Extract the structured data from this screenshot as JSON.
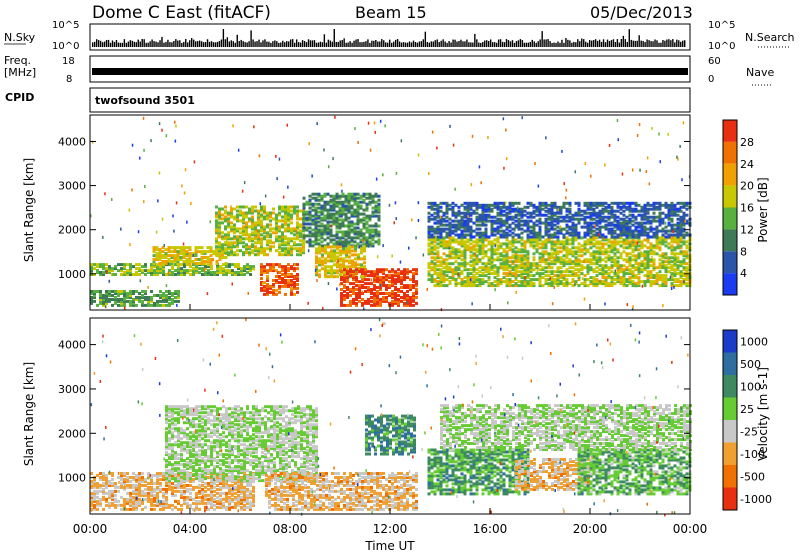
{
  "header": {
    "station": "Dome C East (fitACF)",
    "beam": "Beam 15",
    "date": "05/Dec/2013"
  },
  "top_panels": {
    "nsky_label": "N.Sky",
    "nsky_ticks": [
      "10^5",
      "10^0"
    ],
    "nsearch_label": "N.Search",
    "nsearch_ticks": [
      "10^5",
      "10^0"
    ],
    "freq_label": "Freq.",
    "freq_unit": "[MHz]",
    "freq_ticks": [
      "18",
      "8"
    ],
    "nave_label": "Nave",
    "nave_ticks": [
      "60",
      "0"
    ],
    "cpid_label": "CPID",
    "cpid_value": "twofsound 3501"
  },
  "x_axis": {
    "label": "Time UT",
    "ticks": [
      "00:00",
      "04:00",
      "08:00",
      "12:00",
      "16:00",
      "20:00",
      "00:00"
    ]
  },
  "power_panel": {
    "ylabel": "Slant Range [km]",
    "yticks": [
      "1000",
      "2000",
      "3000",
      "4000"
    ],
    "colorbar_label": "Power [dB]",
    "colorbar_ticks": [
      "4",
      "8",
      "12",
      "16",
      "20",
      "24",
      "28"
    ],
    "colorbar_colors": [
      "#1a3cf0",
      "#2a55a8",
      "#3d7a55",
      "#58b040",
      "#c8c800",
      "#f0a000",
      "#f07000",
      "#e83010"
    ]
  },
  "velocity_panel": {
    "ylabel": "Slant Range [km]",
    "yticks": [
      "1000",
      "2000",
      "3000",
      "4000"
    ],
    "colorbar_label": "Velocity [m s-1]",
    "colorbar_ticks": [
      "1000",
      "500",
      "100",
      "25",
      "-25",
      "-100",
      "-500",
      "-1000"
    ],
    "colorbar_colors": [
      "#1a3cc8",
      "#2e6ea0",
      "#3d8a60",
      "#66cc33",
      "#c8c8c8",
      "#f0a030",
      "#f07000",
      "#e83010"
    ]
  },
  "chart_data": [
    {
      "type": "heatmap",
      "title": "Power [dB]",
      "xlabel": "Time UT",
      "ylabel": "Slant Range [km]",
      "xlim": [
        0,
        24
      ],
      "ylim": [
        180,
        4600
      ],
      "clim": [
        0,
        30
      ],
      "regions": [
        {
          "t0": 0.0,
          "t1": 3.5,
          "r0": 250,
          "r1": 600,
          "level": 12
        },
        {
          "t0": 0.0,
          "t1": 6.5,
          "r0": 950,
          "r1": 1200,
          "level": 14
        },
        {
          "t0": 2.5,
          "t1": 5.5,
          "r0": 1200,
          "r1": 1600,
          "level": 18
        },
        {
          "t0": 5.0,
          "t1": 8.5,
          "r0": 1400,
          "r1": 2500,
          "level": 16
        },
        {
          "t0": 6.8,
          "t1": 8.3,
          "r0": 500,
          "r1": 1200,
          "level": 26
        },
        {
          "t0": 8.5,
          "t1": 11.5,
          "r0": 1600,
          "r1": 2800,
          "level": 10
        },
        {
          "t0": 9.0,
          "t1": 11.0,
          "r0": 900,
          "r1": 1600,
          "level": 18
        },
        {
          "t0": 10.0,
          "t1": 13.0,
          "r0": 250,
          "r1": 1100,
          "level": 28
        },
        {
          "t0": 13.5,
          "t1": 24.0,
          "r0": 700,
          "r1": 1800,
          "level": 16
        },
        {
          "t0": 13.5,
          "t1": 24.0,
          "r0": 1800,
          "r1": 2600,
          "level": 6
        }
      ]
    },
    {
      "type": "heatmap",
      "title": "Velocity [m s-1]",
      "xlabel": "Time UT",
      "ylabel": "Slant Range [km]",
      "xlim": [
        0,
        24
      ],
      "ylim": [
        180,
        4600
      ],
      "clim": [
        -1000,
        1000
      ],
      "regions": [
        {
          "t0": 0.0,
          "t1": 6.5,
          "r0": 250,
          "r1": 1100,
          "level": -300
        },
        {
          "t0": 3.0,
          "t1": 9.0,
          "r0": 900,
          "r1": 2600,
          "level": 0
        },
        {
          "t0": 7.0,
          "t1": 13.0,
          "r0": 250,
          "r1": 1100,
          "level": -300
        },
        {
          "t0": 11.0,
          "t1": 13.0,
          "r0": 1500,
          "r1": 2400,
          "level": 400
        },
        {
          "t0": 13.5,
          "t1": 17.5,
          "r0": 600,
          "r1": 1600,
          "level": 300
        },
        {
          "t0": 17.0,
          "t1": 20.0,
          "r0": 700,
          "r1": 1400,
          "level": -300
        },
        {
          "t0": 19.5,
          "t1": 24.0,
          "r0": 600,
          "r1": 1600,
          "level": 200
        },
        {
          "t0": 14.0,
          "t1": 24.0,
          "r0": 1600,
          "r1": 2600,
          "level": 0
        }
      ]
    }
  ]
}
